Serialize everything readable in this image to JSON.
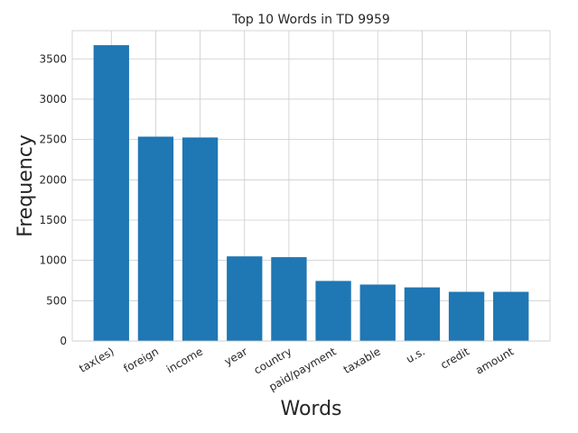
{
  "chart_data": {
    "type": "bar",
    "title": "Top 10 Words in TD 9959",
    "xlabel": "Words",
    "ylabel": "Frequency",
    "categories": [
      "tax(es)",
      "foreign",
      "income",
      "year",
      "country",
      "paid/payment",
      "taxable",
      "u.s.",
      "credit",
      "amount"
    ],
    "values": [
      3670,
      2535,
      2525,
      1050,
      1040,
      745,
      700,
      665,
      610,
      610
    ],
    "ylim": [
      0,
      3850
    ],
    "yticks": [
      0,
      500,
      1000,
      1500,
      2000,
      2500,
      3000,
      3500
    ],
    "grid": true,
    "colors": {
      "bar": "#1f77b4",
      "grid": "#cccccc",
      "text": "#262626"
    }
  }
}
